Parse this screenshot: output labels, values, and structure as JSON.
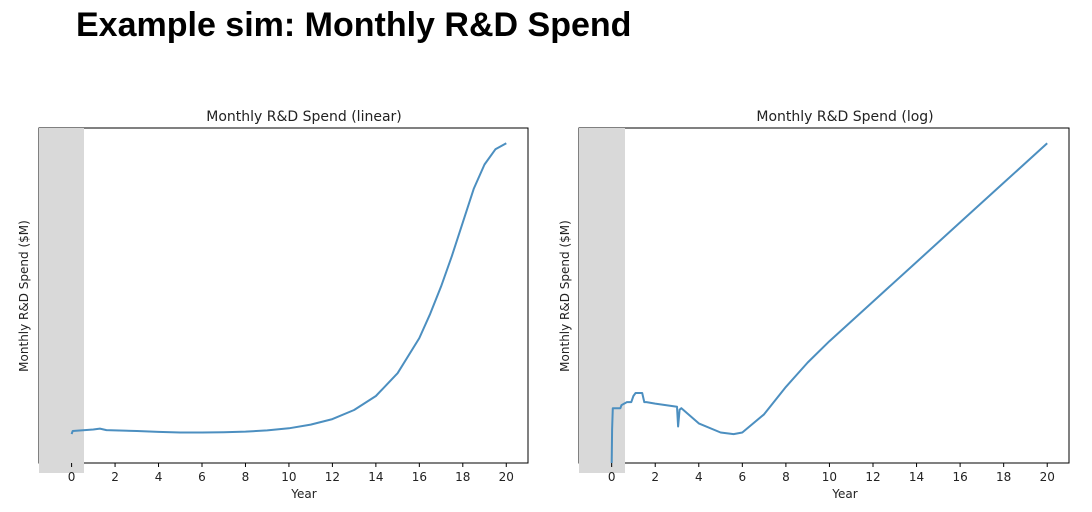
{
  "page": {
    "title": "Example sim: Monthly R&D Spend"
  },
  "colors": {
    "line": "#4c8fc0",
    "mask": "#d9d9d9",
    "axis": "#000000"
  },
  "chart_data": [
    {
      "type": "line",
      "title": "Monthly R&D Spend (linear)",
      "xlabel": "Year",
      "ylabel": "Monthly R&D Spend ($M)",
      "xlim": [
        -1.5,
        21
      ],
      "xticks": [
        "0",
        "2",
        "4",
        "6",
        "8",
        "10",
        "12",
        "14",
        "16",
        "18",
        "20"
      ],
      "yscale": "linear",
      "ylim": [
        -0.05,
        1.05
      ],
      "grid": false,
      "y_tick_labels_hidden": true,
      "series": [
        {
          "x": [
            0,
            0.05,
            1.0,
            1.3,
            1.6,
            3.0,
            4.0,
            5.0,
            6.0,
            7.0,
            8.0,
            9.0,
            10.0,
            11.0,
            12.0,
            13.0,
            14.0,
            15.0,
            16.0,
            16.5,
            17.0,
            17.5,
            18.0,
            18.5,
            19.0,
            19.5,
            20.0
          ],
          "y": [
            0.045,
            0.055,
            0.06,
            0.063,
            0.058,
            0.055,
            0.052,
            0.05,
            0.05,
            0.051,
            0.053,
            0.057,
            0.064,
            0.076,
            0.094,
            0.124,
            0.17,
            0.245,
            0.36,
            0.44,
            0.53,
            0.63,
            0.74,
            0.85,
            0.93,
            0.98,
            1.0
          ]
        }
      ]
    },
    {
      "type": "line",
      "title": "Monthly R&D Spend (log)",
      "xlabel": "Year",
      "ylabel": "Monthly R&D Spend ($M)",
      "xlim": [
        -1.5,
        21
      ],
      "xticks": [
        "0",
        "2",
        "4",
        "6",
        "8",
        "10",
        "12",
        "14",
        "16",
        "18",
        "20"
      ],
      "yscale": "log",
      "ylim": [
        -0.05,
        1.05
      ],
      "grid": false,
      "y_tick_labels_hidden": true,
      "series": [
        {
          "x": [
            0,
            0.02,
            0.05,
            0.4,
            0.45,
            0.7,
            0.9,
            1.0,
            1.1,
            1.4,
            1.5,
            1.6,
            2.0,
            3.0,
            3.05,
            3.12,
            3.2,
            4.0,
            5.0,
            5.6,
            6.0,
            7.0,
            8.0,
            9.0,
            10.0,
            12.0,
            14.0,
            16.0,
            18.0,
            20.0
          ],
          "y": [
            -0.05,
            0.06,
            0.13,
            0.13,
            0.14,
            0.15,
            0.15,
            0.17,
            0.18,
            0.18,
            0.15,
            0.15,
            0.145,
            0.135,
            0.07,
            0.125,
            0.13,
            0.08,
            0.05,
            0.045,
            0.05,
            0.11,
            0.2,
            0.28,
            0.35,
            0.48,
            0.61,
            0.74,
            0.87,
            1.0
          ]
        }
      ]
    }
  ]
}
